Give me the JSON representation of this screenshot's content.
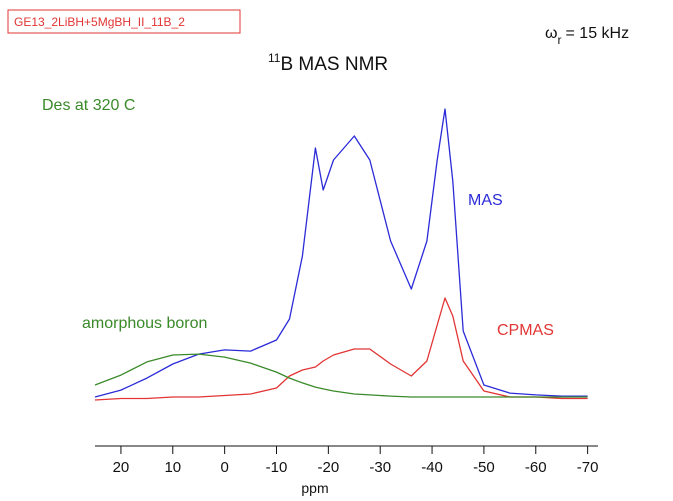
{
  "chart_data": {
    "type": "line",
    "sample_id": "GE13_2LiBH+5MgBH_II_11B_2",
    "title": {
      "superscript": "11",
      "text": "B MAS NMR"
    },
    "spin_rate": {
      "symbol": "ω",
      "subscript": "r",
      "text": "= 15 kHz"
    },
    "annotations": [
      "Des at 320 C"
    ],
    "x_label": "ppm",
    "x": [
      25,
      20,
      15,
      10,
      5,
      0,
      -5,
      -10,
      -12.5,
      -15,
      -17.5,
      -19,
      -21,
      -25,
      -28,
      -32,
      -36,
      -39,
      -41,
      -42.5,
      -44,
      -46,
      -50,
      -55,
      -60,
      -65,
      -70
    ],
    "series": [
      {
        "name": "MAS",
        "color": "#2b2bd8",
        "values": [
          1,
          3.3,
          7.3,
          12,
          15.3,
          16.7,
          16.3,
          20,
          27,
          48,
          84,
          70,
          80,
          88,
          80,
          53,
          37,
          53,
          80,
          97,
          73,
          23,
          5,
          2.3,
          1.7,
          1.3,
          1.3
        ]
      },
      {
        "name": "CPMAS",
        "color": "#e23434",
        "values": [
          0,
          0.5,
          0.5,
          1,
          1,
          1.5,
          2,
          4,
          8,
          10,
          11,
          13,
          15,
          17,
          17,
          12,
          8,
          13,
          25,
          34,
          28,
          13,
          3,
          1,
          1,
          0.5,
          0.5
        ]
      },
      {
        "name": "amorphous boron",
        "color": "#3a8a2a",
        "values": [
          5,
          8.3,
          12.7,
          15,
          15.3,
          14.3,
          12.3,
          9.3,
          7.3,
          5.7,
          4.3,
          3.7,
          3,
          2,
          1.7,
          1.3,
          1,
          1,
          1,
          1,
          1,
          1,
          1,
          1,
          1,
          1,
          1
        ]
      }
    ],
    "xlim": [
      25,
      -72
    ],
    "ylim": [
      0,
      100
    ],
    "xticks": [
      20,
      10,
      0,
      -10,
      -20,
      -30,
      -40,
      -50,
      -60,
      -70
    ],
    "grid": false
  }
}
